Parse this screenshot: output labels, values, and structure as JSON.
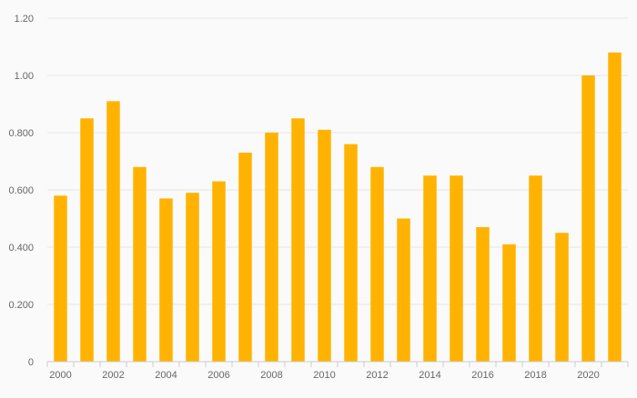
{
  "chart_data": {
    "type": "bar",
    "title": "",
    "xlabel": "",
    "ylabel": "",
    "categories": [
      "2000",
      "2001",
      "2002",
      "2003",
      "2004",
      "2005",
      "2006",
      "2007",
      "2008",
      "2009",
      "2010",
      "2011",
      "2012",
      "2013",
      "2014",
      "2015",
      "2016",
      "2017",
      "2018",
      "2019",
      "2020",
      "2021"
    ],
    "values": [
      0.58,
      0.85,
      0.91,
      0.68,
      0.57,
      0.59,
      0.63,
      0.73,
      0.8,
      0.85,
      0.81,
      0.76,
      0.68,
      0.5,
      0.65,
      0.65,
      0.47,
      0.41,
      0.65,
      0.45,
      1.0,
      1.08
    ],
    "x_tick_labels": [
      "2000",
      "2002",
      "2004",
      "2006",
      "2008",
      "2010",
      "2012",
      "2014",
      "2016",
      "2018",
      "2020"
    ],
    "y_ticks": [
      0,
      0.2,
      0.4,
      0.6,
      0.8,
      1.0,
      1.2
    ],
    "y_tick_labels": [
      "0",
      "0.200",
      "0.400",
      "0.600",
      "0.800",
      "1.00",
      "1.20"
    ],
    "ylim": [
      0,
      1.2
    ],
    "grid": true,
    "legend": "none",
    "colors": {
      "bar": "#FFB300",
      "grid": "#e6e6e6",
      "axis": "#cccccc",
      "text": "#666666",
      "background": "#fafafa"
    }
  }
}
